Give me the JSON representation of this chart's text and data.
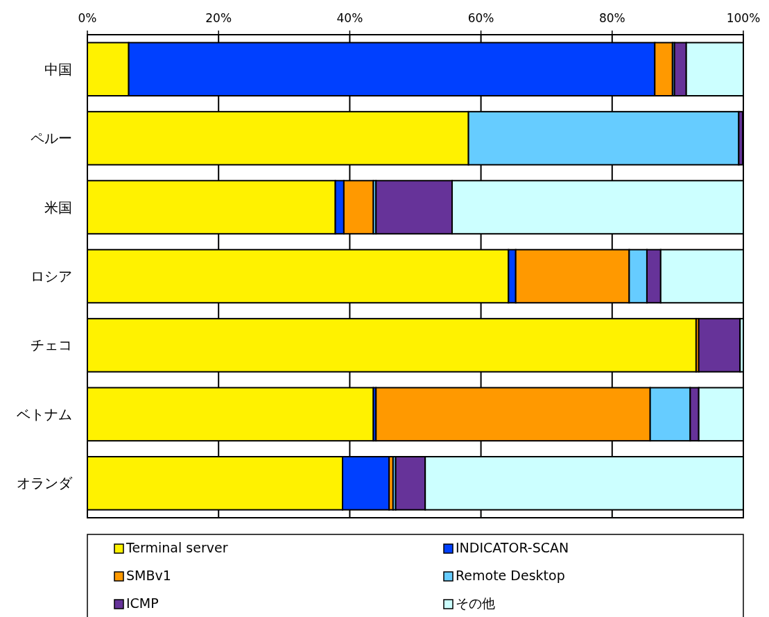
{
  "chart_data": {
    "type": "bar",
    "orientation": "horizontal",
    "stacked": true,
    "categories": [
      "中国",
      "ペルー",
      "米国",
      "ロシア",
      "チェコ",
      "ベトナム",
      "オランダ"
    ],
    "xlim": [
      0,
      100
    ],
    "xticks": [
      {
        "value": 0,
        "label": "0%"
      },
      {
        "value": 20,
        "label": "20%"
      },
      {
        "value": 40,
        "label": "40%"
      },
      {
        "value": 60,
        "label": "60%"
      },
      {
        "value": 80,
        "label": "80%"
      },
      {
        "value": 100,
        "label": "100%"
      }
    ],
    "grid": "x",
    "legend": "bottom",
    "series": [
      {
        "name": "Terminal server",
        "color": "#fff200",
        "values": [
          6.3,
          58.1,
          37.8,
          64.2,
          92.8,
          43.6,
          38.9
        ]
      },
      {
        "name": "INDICATOR-SCAN",
        "color": "#0040ff",
        "values": [
          80.2,
          0,
          1.3,
          1.1,
          0,
          0.4,
          7.1
        ]
      },
      {
        "name": "SMBv1",
        "color": "#ff9900",
        "values": [
          2.7,
          0,
          4.5,
          17.3,
          0.4,
          41.8,
          0.6
        ]
      },
      {
        "name": "Remote Desktop",
        "color": "#66ccff",
        "values": [
          0.3,
          41.2,
          0.4,
          2.7,
          0,
          6.1,
          0.4
        ]
      },
      {
        "name": "ICMP",
        "color": "#663399",
        "values": [
          1.8,
          0.6,
          11.6,
          2.1,
          6.3,
          1.3,
          4.5
        ]
      },
      {
        "name": "その他",
        "color": "#ccffff",
        "values": [
          8.7,
          0,
          44.4,
          12.6,
          0.5,
          6.8,
          48.5
        ]
      }
    ]
  }
}
